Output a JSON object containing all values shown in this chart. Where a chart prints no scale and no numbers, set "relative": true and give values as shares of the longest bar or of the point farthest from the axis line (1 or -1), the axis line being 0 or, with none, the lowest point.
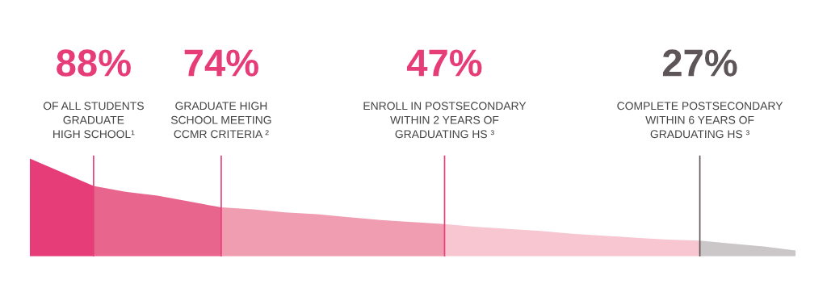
{
  "chart_data": {
    "type": "area",
    "relative": true,
    "categories": [
      null,
      null,
      null,
      null,
      null,
      null,
      null,
      null,
      null,
      null,
      null,
      null,
      null,
      null,
      null,
      null,
      null,
      null,
      null,
      null,
      null,
      null,
      null,
      null,
      null
    ],
    "series": [
      {
        "color": "#e63d78",
        "values": [
          1.0,
          0.86,
          0.72,
          null,
          null,
          null,
          null,
          null,
          null,
          null,
          null,
          null,
          null,
          null,
          null,
          null,
          null,
          null,
          null,
          null,
          null,
          null,
          null,
          null,
          null
        ]
      },
      {
        "color": "#e8668d",
        "values": [
          null,
          null,
          0.72,
          0.66,
          0.62,
          0.56,
          0.5,
          null,
          null,
          null,
          null,
          null,
          null,
          null,
          null,
          null,
          null,
          null,
          null,
          null,
          null,
          null,
          null,
          null,
          null
        ]
      },
      {
        "color": "#f09db1",
        "values": [
          null,
          null,
          null,
          null,
          null,
          null,
          0.5,
          0.48,
          0.45,
          0.43,
          0.4,
          0.37,
          0.35,
          0.33,
          null,
          null,
          null,
          null,
          null,
          null,
          null,
          null,
          null,
          null,
          null
        ]
      },
      {
        "color": "#f7c6d1",
        "values": [
          null,
          null,
          null,
          null,
          null,
          null,
          null,
          null,
          null,
          null,
          null,
          null,
          null,
          0.33,
          0.3,
          0.28,
          0.26,
          0.23,
          0.21,
          0.19,
          0.17,
          0.16,
          null,
          null,
          null
        ]
      },
      {
        "color": "#cbc6c8",
        "values": [
          null,
          null,
          null,
          null,
          null,
          null,
          null,
          null,
          null,
          null,
          null,
          null,
          null,
          null,
          null,
          null,
          null,
          null,
          null,
          null,
          null,
          0.16,
          0.13,
          0.1,
          0.06
        ]
      }
    ],
    "annotations": [
      "88%",
      "OF ALL STUDENTS\nGRADUATE\nHIGH SCHOOL¹",
      "74%",
      "GRADUATE HIGH\nSCHOOL MEETING\nCCMR CRITERIA ²",
      "47%",
      "ENROLL IN POSTSECONDARY\nWITHIN 2 YEARS OF\nGRADUATING HS ³",
      "27%",
      "COMPLETE POSTSECONDARY\nWITHIN 6 YEARS OF\nGRADUATING HS ³"
    ],
    "grid": "x",
    "legend": false
  }
}
